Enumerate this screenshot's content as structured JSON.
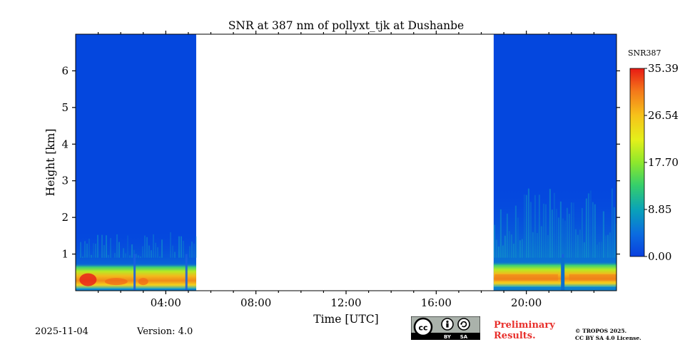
{
  "chart_data": {
    "type": "heatmap",
    "title": "SNR at 387 nm of pollyxt_tjk at Dushanbe",
    "xlabel": "Time [UTC]",
    "ylabel": "Height [km]",
    "xlim_hours": [
      0,
      24
    ],
    "ylim_km": [
      0,
      7
    ],
    "x_ticks": [
      {
        "hour": 4,
        "label": "04:00"
      },
      {
        "hour": 8,
        "label": "08:00"
      },
      {
        "hour": 12,
        "label": "12:00"
      },
      {
        "hour": 16,
        "label": "16:00"
      },
      {
        "hour": 20,
        "label": "20:00"
      }
    ],
    "y_ticks": [
      {
        "km": 1,
        "label": "1"
      },
      {
        "km": 2,
        "label": "2"
      },
      {
        "km": 3,
        "label": "3"
      },
      {
        "km": 4,
        "label": "4"
      },
      {
        "km": 5,
        "label": "5"
      },
      {
        "km": 6,
        "label": "6"
      }
    ],
    "colorbar": {
      "label": "SNR387",
      "min": 0.0,
      "max": 35.39,
      "ticks": [
        {
          "value": 0.0,
          "label": "0.00"
        },
        {
          "value": 8.85,
          "label": "8.85"
        },
        {
          "value": 17.7,
          "label": "17.70"
        },
        {
          "value": 26.54,
          "label": "26.54"
        },
        {
          "value": 35.39,
          "label": "35.39"
        }
      ]
    },
    "data_segments": [
      {
        "start_hour": 0.0,
        "end_hour": 5.35
      },
      {
        "start_hour": 18.55,
        "end_hour": 24.0
      }
    ],
    "missing_data": {
      "start_hour": 5.35,
      "end_hour": 18.55
    },
    "high_snr_layers": [
      {
        "start_hour": 0.0,
        "end_hour": 5.35,
        "bottom_km": 0.05,
        "top_km": 0.75,
        "peak_snr": 30
      },
      {
        "start_hour": 18.55,
        "end_hour": 24.0,
        "bottom_km": 0.1,
        "top_km": 0.8,
        "peak_snr": 28
      }
    ]
  },
  "footer": {
    "date": "2025-11-04",
    "version": "Version: 4.0",
    "license_badge": {
      "cc": "cc",
      "by": "BY",
      "sa": "SA"
    },
    "preliminary_line1": "Preliminary",
    "preliminary_line2": "Results.",
    "copyright_line1": "© TROPOS 2025.",
    "copyright_line2": "CC BY SA 4.0 License.",
    "accent_red": "#e8302c"
  }
}
